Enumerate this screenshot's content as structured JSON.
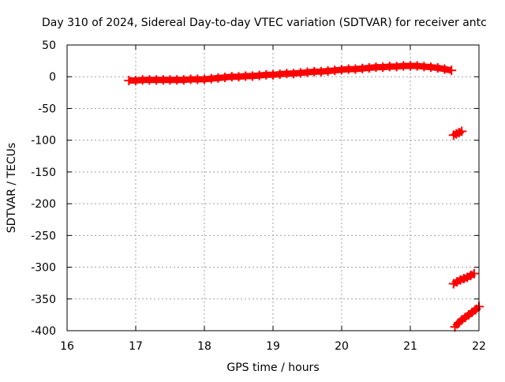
{
  "chart_data": {
    "type": "scatter",
    "title": "Day 310 of 2024, Sidereal Day-to-day VTEC variation (SDTVAR) for receiver antc",
    "xlabel": "GPS time / hours",
    "ylabel": "SDTVAR / TECUs",
    "xlim": [
      16,
      22
    ],
    "ylim": [
      -400,
      50
    ],
    "x_ticks": [
      16,
      17,
      18,
      19,
      20,
      21,
      22
    ],
    "y_ticks": [
      50,
      0,
      -50,
      -100,
      -150,
      -200,
      -250,
      -300,
      -350,
      -400
    ],
    "grid": true,
    "grid_style": "dotted",
    "legend": "none",
    "marker": "plus",
    "series_color": "#ff0000",
    "series": [
      {
        "x": [
          16.9,
          17.0,
          17.1,
          17.2,
          17.3,
          17.4,
          17.5,
          17.6,
          17.7,
          17.8,
          17.9,
          18.0,
          18.1,
          18.2,
          18.3,
          18.4,
          18.5,
          18.6,
          18.7,
          18.8,
          18.9,
          19.0,
          19.1,
          19.2,
          19.3,
          19.4,
          19.5,
          19.6,
          19.7,
          19.8,
          19.9,
          20.0,
          20.1,
          20.2,
          20.3,
          20.4,
          20.5,
          20.6,
          20.7,
          20.8,
          20.9,
          21.0,
          21.1,
          21.2,
          21.3,
          21.4,
          21.5,
          21.6
        ],
        "y": [
          -6,
          -6,
          -5,
          -5,
          -5,
          -5,
          -5,
          -5,
          -5,
          -4,
          -4,
          -4,
          -3,
          -2,
          -1,
          0,
          0,
          1,
          1,
          2,
          3,
          3,
          4,
          5,
          5,
          6,
          7,
          8,
          8,
          9,
          10,
          11,
          12,
          12,
          13,
          14,
          15,
          15,
          16,
          16,
          17,
          17,
          17,
          16,
          15,
          14,
          12,
          10
        ]
      },
      {
        "x": [
          21.63,
          21.67,
          21.71,
          21.75
        ],
        "y": [
          -92,
          -90,
          -88,
          -86
        ]
      },
      {
        "x": [
          21.63,
          21.68,
          21.73,
          21.78,
          21.83,
          21.88,
          21.93
        ],
        "y": [
          -326,
          -323,
          -320,
          -318,
          -316,
          -313,
          -310
        ]
      },
      {
        "x": [
          21.65,
          21.7,
          21.75,
          21.8,
          21.85,
          21.9,
          21.95,
          22.0
        ],
        "y": [
          -394,
          -388,
          -383,
          -379,
          -375,
          -371,
          -367,
          -362
        ]
      }
    ]
  }
}
